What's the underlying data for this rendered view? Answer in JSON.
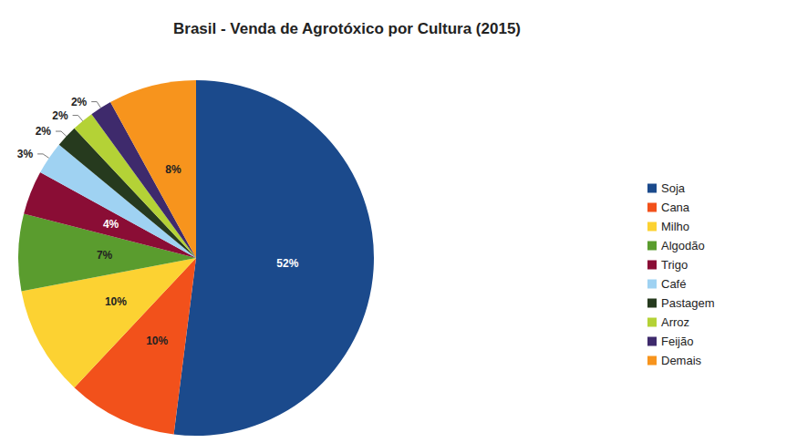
{
  "chart_data": {
    "type": "pie",
    "title": "Brasil - Venda de Agrotóxico por Cultura (2015)",
    "categories": [
      "Soja",
      "Cana",
      "Milho",
      "Algodão",
      "Trigo",
      "Café",
      "Pastagem",
      "Arroz",
      "Feijão",
      "Demais"
    ],
    "values": [
      52,
      10,
      10,
      7,
      4,
      3,
      2,
      2,
      2,
      8
    ],
    "value_labels": [
      "52%",
      "10%",
      "10%",
      "7%",
      "4%",
      "3%",
      "2%",
      "2%",
      "2%",
      "8%"
    ],
    "colors": [
      "#1b4a8c",
      "#f2511b",
      "#fcd232",
      "#5a9c2e",
      "#8a0d35",
      "#9fd2f2",
      "#263a1e",
      "#b4d236",
      "#3e2a6c",
      "#f7941d"
    ],
    "data_labels": true,
    "legend": "right"
  }
}
